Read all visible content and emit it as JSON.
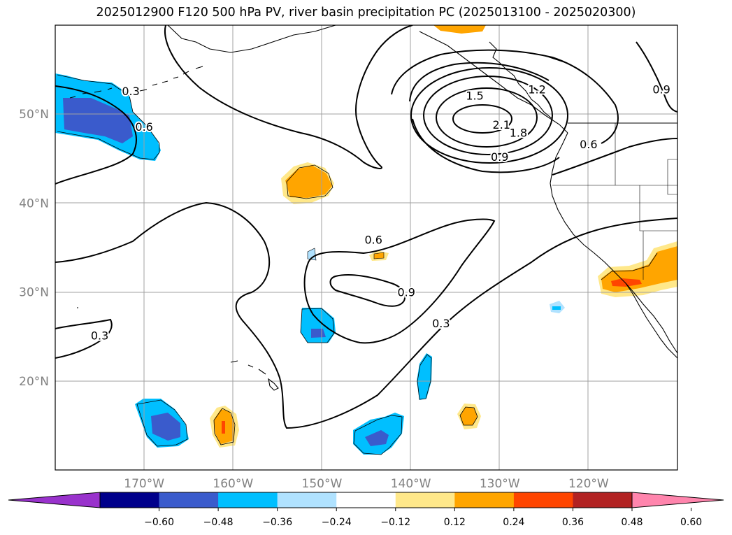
{
  "title": "2025012900 F120 500 hPa PV, river basin precipitation PC (2025013100 - 2025020300)",
  "map": {
    "lon_range": [
      -180,
      -110
    ],
    "lat_range": [
      10,
      60
    ],
    "lat_labels": [
      "20°N",
      "30°N",
      "40°N",
      "50°N"
    ],
    "lon_labels": [
      "170°W",
      "160°W",
      "150°W",
      "140°W",
      "130°W",
      "120°W"
    ],
    "grid": true,
    "projection": "PlateCarree"
  },
  "contour_labels": [
    {
      "text": "0.3",
      "lon": -171.5,
      "lat": 52.5
    },
    {
      "text": "0.6",
      "lon": -170.0,
      "lat": 48.5
    },
    {
      "text": "0.3",
      "lon": -175.0,
      "lat": 25.0
    },
    {
      "text": "0.6",
      "lon": -144.2,
      "lat": 35.8
    },
    {
      "text": "0.9",
      "lon": -140.5,
      "lat": 29.9
    },
    {
      "text": "0.3",
      "lon": -136.6,
      "lat": 26.4
    },
    {
      "text": "1.5",
      "lon": -132.8,
      "lat": 52.0
    },
    {
      "text": "1.2",
      "lon": -125.8,
      "lat": 52.7
    },
    {
      "text": "2.1",
      "lon": -129.8,
      "lat": 48.7
    },
    {
      "text": "1.8",
      "lon": -127.9,
      "lat": 47.8
    },
    {
      "text": "0.9",
      "lon": -130.0,
      "lat": 45.1
    },
    {
      "text": "0.6",
      "lon": -120.0,
      "lat": 46.5
    },
    {
      "text": "0.9",
      "lon": -111.8,
      "lat": 52.7
    }
  ],
  "colorbar": {
    "ticks": [
      "−0.60",
      "−0.48",
      "−0.36",
      "−0.24",
      "−0.12",
      "0.12",
      "0.24",
      "0.36",
      "0.48",
      "0.60"
    ],
    "colors": [
      "#9932cc",
      "#00008b",
      "#3a5bcc",
      "#00bfff",
      "#b0e2ff",
      "#ffffff",
      "#ffe88a",
      "#ffa500",
      "#ff4500",
      "#b22222",
      "#ff85ad"
    ],
    "extend": "both"
  }
}
